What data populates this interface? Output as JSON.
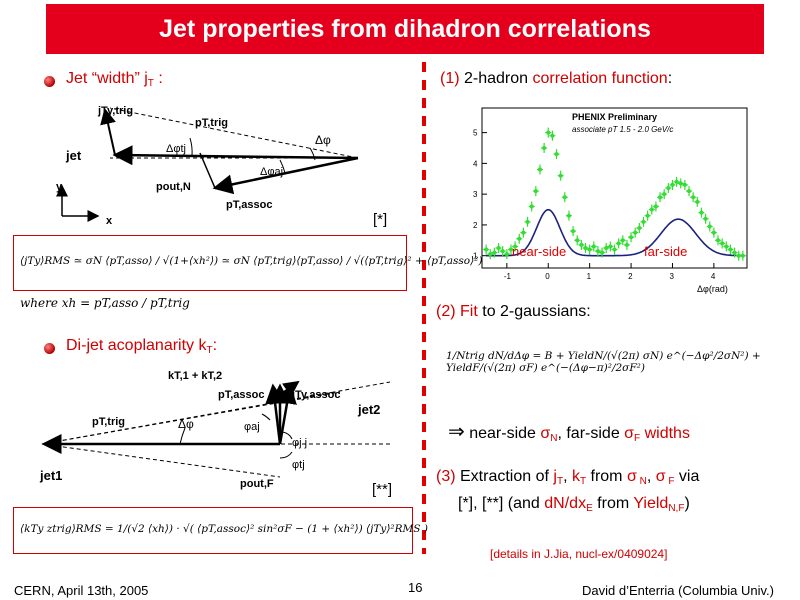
{
  "slide": {
    "title": "Jet properties from dihadron correlations",
    "footer_left": "CERN, April 13th, 2005",
    "footer_page": "16",
    "footer_right": "David d’Enterria (Columbia Univ.)"
  },
  "left": {
    "bullet1": {
      "prefix": "Jet “width”  j",
      "sub": "T",
      "suffix": " :"
    },
    "diagram1": {
      "labels": {
        "jTy": "jTy,trig",
        "pTtrig": "pT,trig",
        "dphi": "Δφ",
        "dphitj": "Δφtj",
        "jet": "jet",
        "dphiaj": "Δφaj",
        "poutN": "pout,N",
        "pTassoc": "pT,assoc",
        "y": "y",
        "x": "x"
      },
      "ref": "[*]"
    },
    "eq1_text": "⟨jTy⟩RMS ≃ σN ⟨pT,asso⟩ / √(1+⟨xh²⟩) ≃ σN ⟨pT,trig⟩⟨pT,asso⟩ / √(⟨pT,trig⟩² + ⟨pT,asso⟩²)",
    "where_text": "where  xh = pT,asso / pT,trig",
    "bullet2": {
      "prefix": "Di-jet acoplanarity k",
      "sub": "T",
      "suffix": ":"
    },
    "diagram2": {
      "labels": {
        "kT": "kT,1 + kT,2",
        "pTassoc": "pT,assoc",
        "jTy": "jTy,assoc",
        "jet2": "jet2",
        "pTtrig": "pT,trig",
        "dphi": "Δφ",
        "phiaj": "φaj",
        "phijj": "φj j",
        "phitj": "φtj",
        "jet1": "jet1",
        "poutF": "pout,F"
      },
      "ref": "[**]"
    },
    "eq2_text": "⟨kTy ztrig⟩RMS = 1/(√2 ⟨xh⟩) · √( ⟨pT,assoc⟩² sin²σF − (1 + ⟨xh²⟩) ⟨jTy⟩²RMS )"
  },
  "right": {
    "item1": {
      "num": "(1)",
      "text": " 2-hadron ",
      "red": "correlation function",
      "end": ":"
    },
    "plot": {
      "legend_line1": "PHENIX Preliminary",
      "legend_line2": "associate pT 1.5 - 2.0 GeV/c",
      "near_label": "near-side",
      "far_label": "far-side",
      "xlabel": "Δφ(rad)",
      "xticks": [
        "-1",
        "0",
        "1",
        "2",
        "3",
        "4"
      ],
      "yticks": [
        "1",
        "2",
        "3",
        "4",
        "5"
      ]
    },
    "item2": {
      "num": "(2)",
      "red": "Fit",
      "text": " to 2-gaussians:"
    },
    "eq3_text": "1/Ntrig dN/dΔφ = B + YieldN/(√(2π) σN) e^(−Δφ²/2σN²) + YieldF/(√(2π) σF) e^(−(Δφ−π)²/2σF²)",
    "item3": {
      "arrow": "⇒",
      "t1": " near-side ",
      "sN": "σ",
      "sNsub": "N",
      "t2": ", far-side ",
      "sF": "σ",
      "sFsub": "F",
      "t3": " widths"
    },
    "item4_line1": {
      "num": "(3)",
      "t1": " Extraction of ",
      "jT": "j",
      "jTsub": "T",
      "c": ", ",
      "kT": "k",
      "kTsub": "T",
      "t2": " from ",
      "sN": "σ",
      "sNsub": " N",
      "c2": ", ",
      "sF": "σ",
      "sFsub": " F",
      "t3": " via"
    },
    "item4_line2": {
      "t1": "[*], [**] (and ",
      "dN": "dN/dx",
      "dNsub": "E",
      "t2": " from ",
      "yield": "Yield",
      "ysub": "N,F",
      "t3": ")"
    },
    "details": "[details in J.Jia, nucl-ex/0409024]"
  },
  "chart_data": {
    "type": "scatter",
    "title": "",
    "xlabel": "Δφ(rad)",
    "ylabel": "",
    "xlim": [
      -1.6,
      4.8
    ],
    "ylim": [
      0.6,
      5.8
    ],
    "fit": {
      "B": 1.0,
      "yield_near": 1.05,
      "sigma_near": 0.28,
      "yield_far": 1.25,
      "sigma_far": 0.42
    },
    "series": [
      {
        "values": [
          [
            -1.5,
            1.2
          ],
          [
            -1.4,
            1.05
          ],
          [
            -1.3,
            1.1
          ],
          [
            -1.2,
            1.25
          ],
          [
            -1.1,
            1.15
          ],
          [
            -1.0,
            1.05
          ],
          [
            -0.9,
            1.2
          ],
          [
            -0.8,
            1.3
          ],
          [
            -0.7,
            1.55
          ],
          [
            -0.6,
            1.75
          ],
          [
            -0.5,
            2.1
          ],
          [
            -0.4,
            2.6
          ],
          [
            -0.3,
            3.1
          ],
          [
            -0.2,
            3.8
          ],
          [
            -0.1,
            4.5
          ],
          [
            0.0,
            5.0
          ],
          [
            0.1,
            4.9
          ],
          [
            0.2,
            4.3
          ],
          [
            0.3,
            3.6
          ],
          [
            0.4,
            2.9
          ],
          [
            0.5,
            2.3
          ],
          [
            0.6,
            1.8
          ],
          [
            0.7,
            1.5
          ],
          [
            0.8,
            1.35
          ],
          [
            0.9,
            1.25
          ],
          [
            1.0,
            1.2
          ],
          [
            1.1,
            1.3
          ],
          [
            1.2,
            1.15
          ],
          [
            1.3,
            1.1
          ],
          [
            1.4,
            1.25
          ],
          [
            1.5,
            1.3
          ],
          [
            1.6,
            1.2
          ],
          [
            1.7,
            1.4
          ],
          [
            1.8,
            1.5
          ],
          [
            1.9,
            1.35
          ],
          [
            2.0,
            1.6
          ],
          [
            2.1,
            1.75
          ],
          [
            2.2,
            1.9
          ],
          [
            2.3,
            2.1
          ],
          [
            2.4,
            2.3
          ],
          [
            2.5,
            2.5
          ],
          [
            2.6,
            2.6
          ],
          [
            2.7,
            2.9
          ],
          [
            2.8,
            3.0
          ],
          [
            2.9,
            3.2
          ],
          [
            3.0,
            3.3
          ],
          [
            3.1,
            3.4
          ],
          [
            3.2,
            3.35
          ],
          [
            3.3,
            3.3
          ],
          [
            3.4,
            3.1
          ],
          [
            3.5,
            2.9
          ],
          [
            3.6,
            2.75
          ],
          [
            3.7,
            2.4
          ],
          [
            3.8,
            2.2
          ],
          [
            3.9,
            1.95
          ],
          [
            4.0,
            1.75
          ],
          [
            4.1,
            1.5
          ],
          [
            4.2,
            1.4
          ],
          [
            4.3,
            1.3
          ],
          [
            4.4,
            1.2
          ],
          [
            4.5,
            1.1
          ],
          [
            4.6,
            1.0
          ],
          [
            4.7,
            1.0
          ]
        ]
      }
    ],
    "colors": {
      "points": "#33dd33",
      "fit": "#1a237e"
    }
  }
}
